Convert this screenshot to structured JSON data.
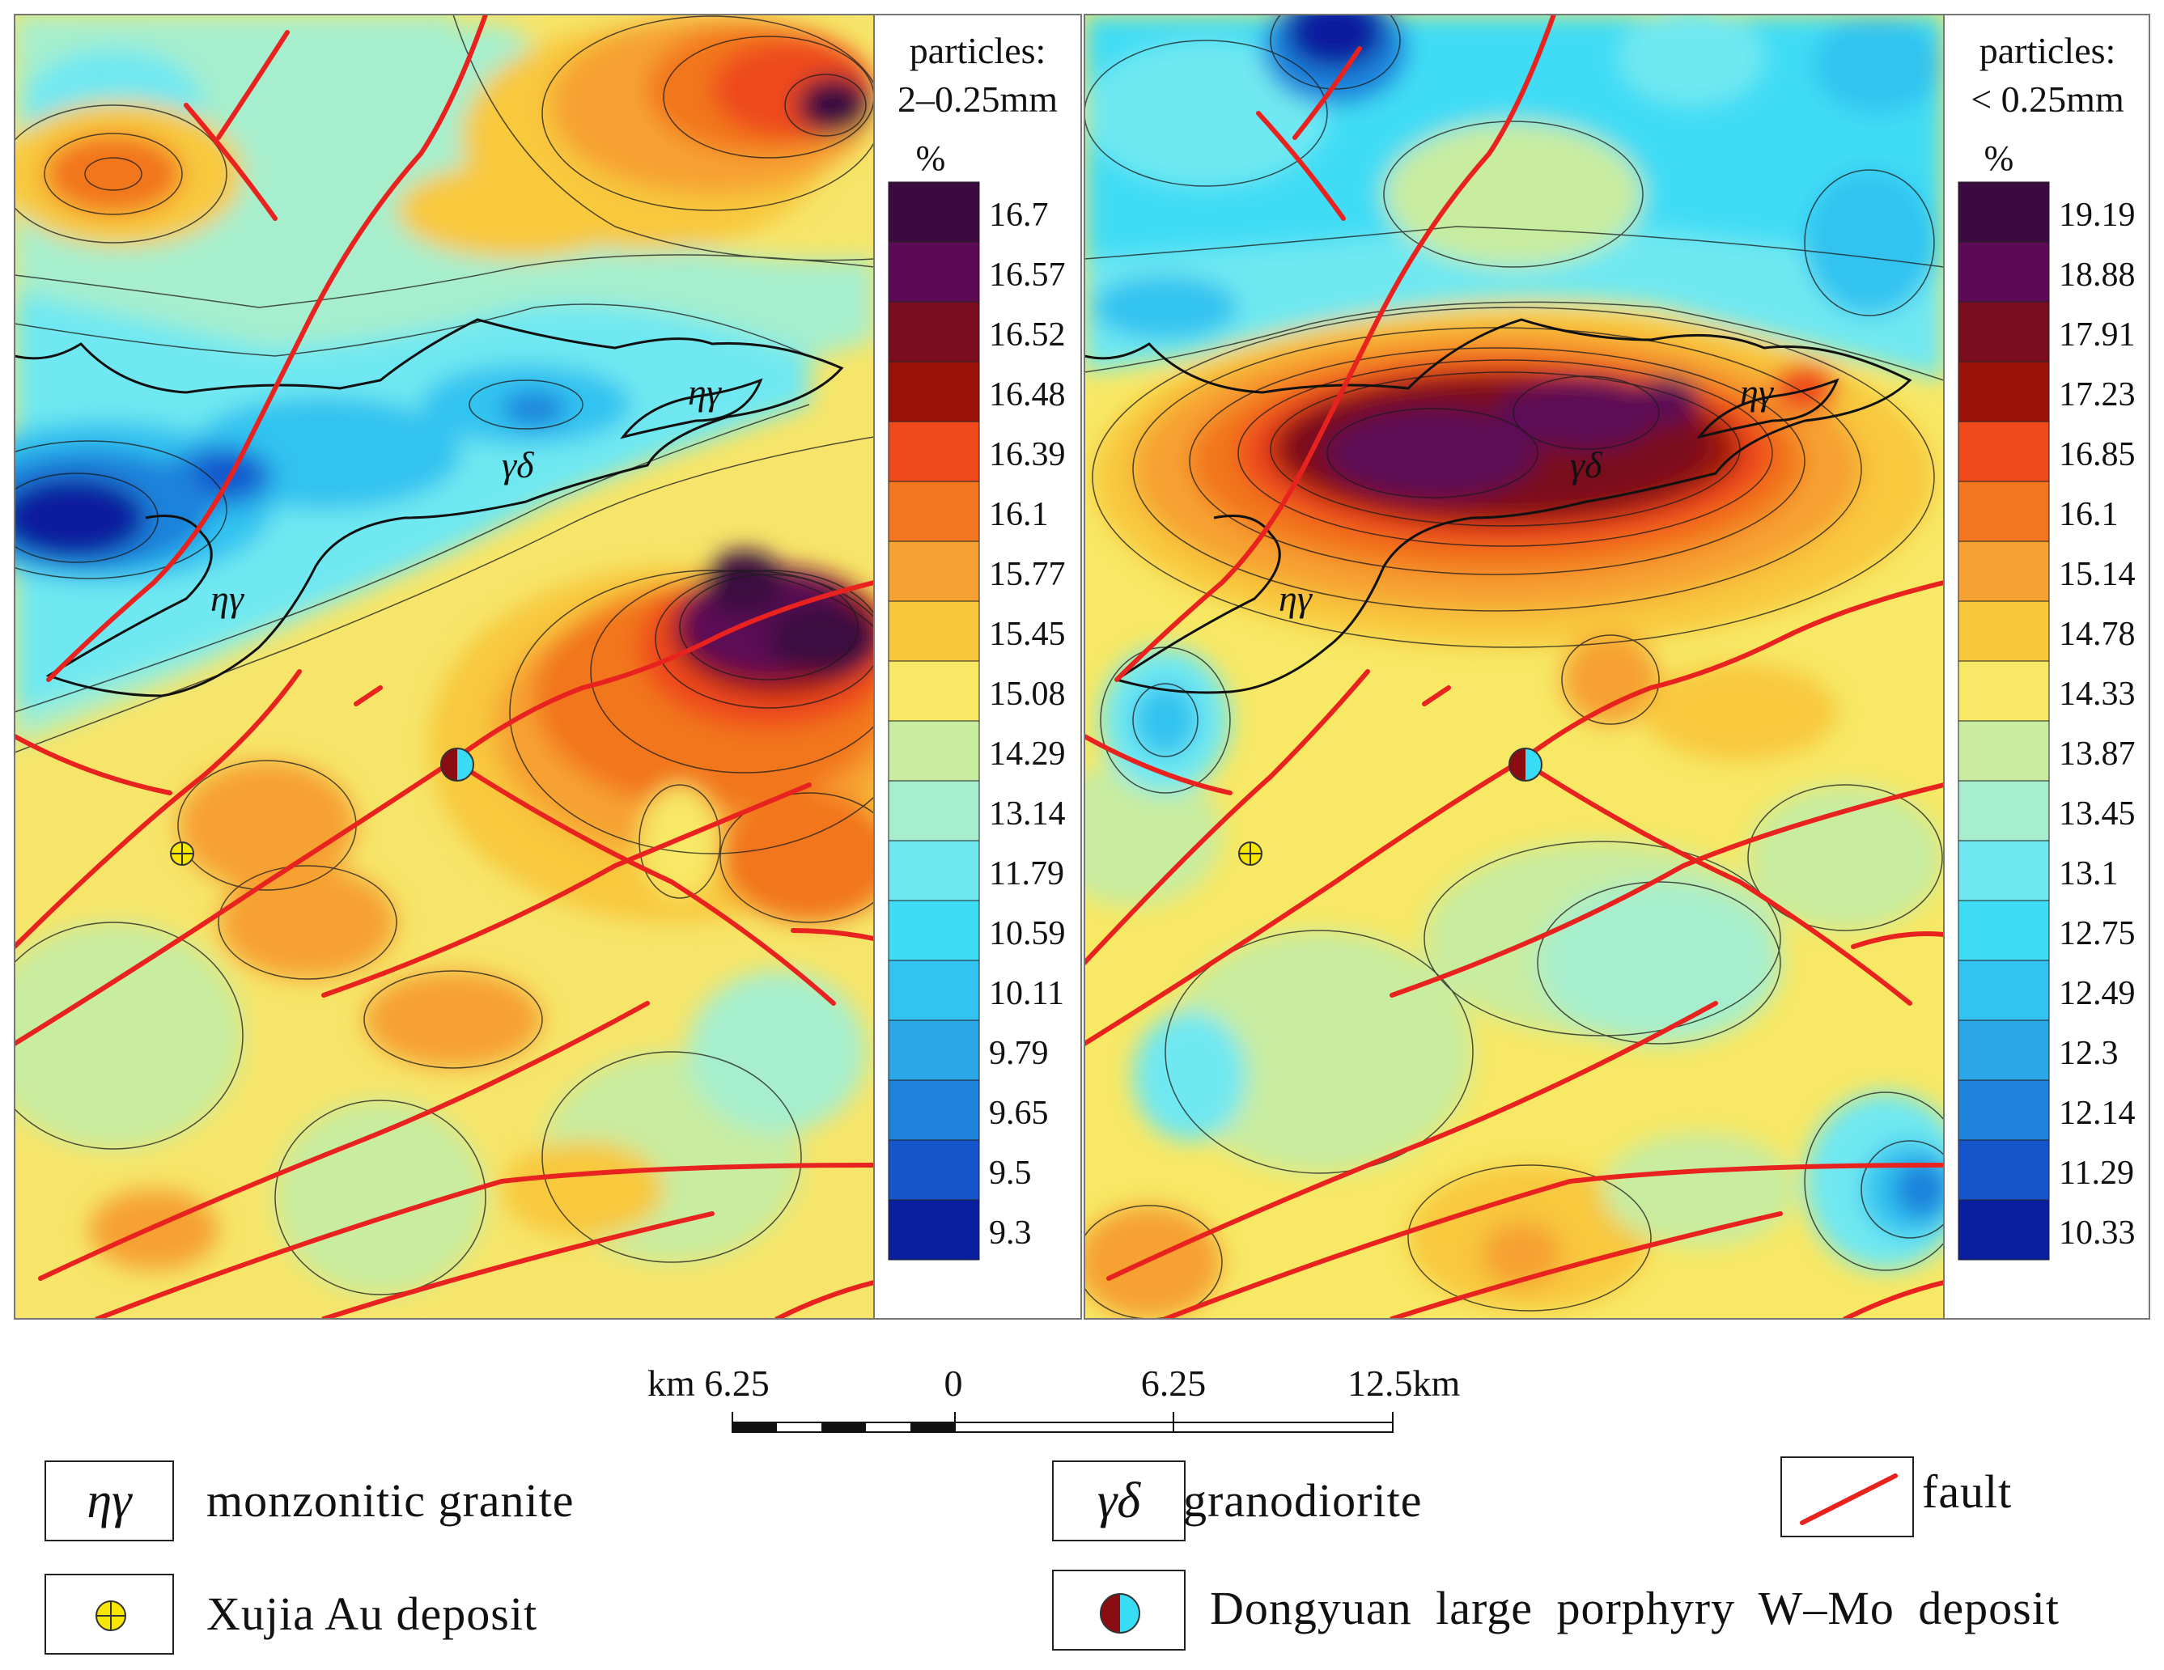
{
  "maps": [
    {
      "id": "coarse",
      "title_line1": "particles:",
      "title_line2": "2–0.25mm",
      "unit": "%",
      "labels": [
        "16.7",
        "16.57",
        "16.52",
        "16.48",
        "16.39",
        "16.1",
        "15.77",
        "15.45",
        "15.08",
        "14.29",
        "13.14",
        "11.79",
        "10.59",
        "10.11",
        "9.79",
        "9.65",
        "9.5",
        "9.3"
      ],
      "rock_labels": [
        "ηγ",
        "γδ",
        "ηγ"
      ]
    },
    {
      "id": "fine",
      "title_line1": "particles:",
      "title_line2": "< 0.25mm",
      "unit": "%",
      "labels": [
        "19.19",
        "18.88",
        "17.91",
        "17.23",
        "16.85",
        "16.1",
        "15.14",
        "14.78",
        "14.33",
        "13.87",
        "13.45",
        "13.1",
        "12.75",
        "12.49",
        "12.3",
        "12.14",
        "11.29",
        "10.33"
      ],
      "rock_labels": [
        "ηγ",
        "γδ",
        "ηγ"
      ]
    }
  ],
  "colors": {
    "scale": [
      "#3b0a40",
      "#5c0a55",
      "#7a0d1e",
      "#9a1208",
      "#ee4a1c",
      "#f2761f",
      "#f6a133",
      "#f8c83c",
      "#f7e865",
      "#c8eca0",
      "#a6eecd",
      "#6fe8f1",
      "#3fdcf5",
      "#33c3f0",
      "#2ba7e6",
      "#1f82db",
      "#1654cc",
      "#0a1f9e"
    ],
    "fault": "#e8231f",
    "contour": "#1a1a1a",
    "boundary": "#111111"
  },
  "scale_bar": {
    "left": "km 6.25",
    "zero": "0",
    "mid": "6.25",
    "right": "12.5km"
  },
  "legend": [
    {
      "symbol": "ηγ",
      "label": "monzonitic granite"
    },
    {
      "symbol": "γδ",
      "label": "granodiorite"
    },
    {
      "symbol": "fault-icon",
      "label": "fault"
    },
    {
      "symbol": "gold-deposit-icon",
      "label": "Xujia Au deposit"
    },
    {
      "symbol": "wmo-deposit-icon",
      "label": "Dongyuan large porphyry W–Mo deposit"
    }
  ]
}
